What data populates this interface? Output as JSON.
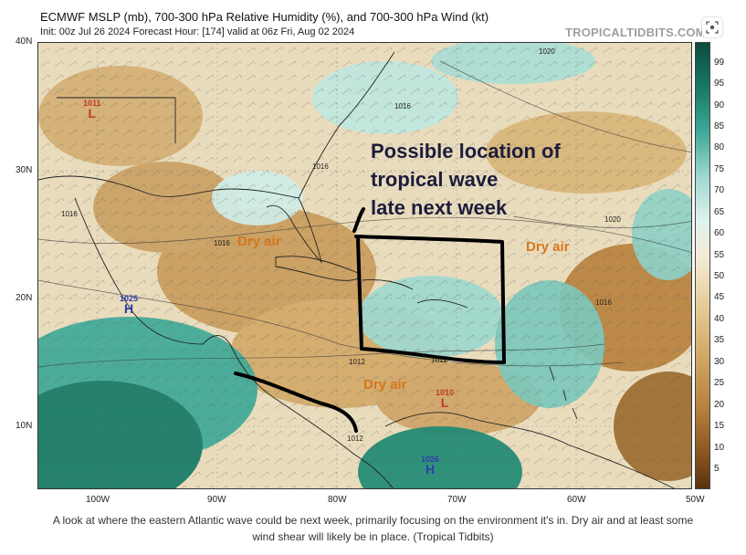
{
  "header": {
    "title": "ECMWF MSLP (mb), 700-300 hPa Relative Humidity (%), and 700-300 hPa Wind (kt)",
    "subtitle": "Init: 00z Jul 26 2024   Forecast Hour: [174]   valid at 06z Fri, Aug 02 2024",
    "brand": "TROPICALTIDBITS.COM"
  },
  "axes": {
    "lat": [
      "40N",
      "30N",
      "20N",
      "10N"
    ],
    "lon": [
      "100W",
      "90W",
      "80W",
      "70W",
      "60W",
      "50W"
    ]
  },
  "colorbar": {
    "labels": [
      "99",
      "95",
      "90",
      "85",
      "80",
      "75",
      "70",
      "65",
      "60",
      "55",
      "50",
      "45",
      "40",
      "35",
      "30",
      "25",
      "20",
      "15",
      "10",
      "5"
    ]
  },
  "annotation": {
    "line1": "Possible location of",
    "line2": "tropical wave",
    "line3": "late next week"
  },
  "labels": {
    "dry_air_1": "Dry air",
    "dry_air_2": "Dry air",
    "dry_air_3": "Dry air"
  },
  "pressure_centers": {
    "low_west": {
      "value": "1011",
      "symbol": "L"
    },
    "high_mexico": {
      "value": "1025",
      "symbol": "H"
    },
    "low_caribbean": {
      "value": "1010",
      "symbol": "L"
    },
    "high_south": {
      "value": "1026",
      "symbol": "H"
    }
  },
  "isobars": [
    "1016",
    "1016",
    "1016",
    "1016",
    "1012",
    "1012",
    "1020",
    "1020",
    "1016",
    "1012"
  ],
  "caption": {
    "line1": "A look at where the eastern Atlantic wave could be next week, primarily focusing on the environment it's in. Dry air and at least some",
    "line2": "wind shear will likely be in place. (Tropical Tidbits)"
  }
}
